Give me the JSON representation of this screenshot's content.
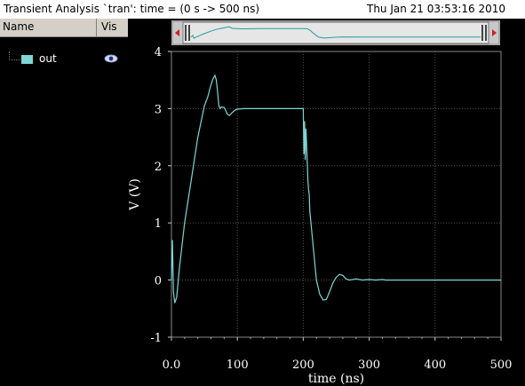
{
  "window": {
    "title": "Transient Analysis `tran': time = (0 s -> 500 ns)",
    "datetime": "Thu Jan 21 03:53:16 2010"
  },
  "signal_panel": {
    "col_name": "Name",
    "col_vis": "Vis",
    "signals": [
      {
        "name": "out",
        "color": "#7fd6d6",
        "visible_icon": "eye-icon"
      }
    ]
  },
  "chart_data": {
    "type": "line",
    "xlabel": "time (ns)",
    "ylabel": "V (V)",
    "xlim": [
      0,
      500
    ],
    "ylim": [
      -1,
      4
    ],
    "x_ticks": [
      "0.0",
      "100",
      "200",
      "300",
      "400",
      "500"
    ],
    "y_ticks": [
      "-1",
      "0",
      "1",
      "2",
      "3",
      "4"
    ],
    "grid": true,
    "series": [
      {
        "name": "out",
        "color": "#7fd6d6",
        "x": [
          0,
          1.5,
          3,
          5,
          8,
          12,
          20,
          30,
          40,
          50,
          55,
          60,
          63,
          66,
          68,
          70,
          72,
          74,
          76,
          80,
          85,
          88,
          92,
          96,
          100,
          110,
          120,
          140,
          160,
          180,
          195,
          200,
          201,
          202,
          203,
          204,
          205,
          206,
          207,
          208,
          209,
          210,
          215,
          220,
          225,
          230,
          235,
          240,
          245,
          250,
          255,
          260,
          265,
          270,
          280,
          290,
          300,
          310,
          320,
          325,
          330,
          350,
          400,
          450,
          500
        ],
        "y": [
          0,
          0.7,
          -0.2,
          -0.4,
          -0.3,
          0.2,
          1.0,
          1.75,
          2.5,
          3.05,
          3.2,
          3.42,
          3.52,
          3.58,
          3.5,
          3.3,
          3.05,
          3.0,
          3.03,
          3.02,
          2.9,
          2.88,
          2.93,
          2.97,
          2.99,
          3.0,
          3.0,
          3.0,
          3.0,
          3.0,
          3.0,
          3.0,
          2.2,
          2.78,
          2.1,
          2.65,
          2.4,
          2.05,
          1.75,
          1.6,
          1.5,
          1.2,
          0.6,
          0.0,
          -0.25,
          -0.35,
          -0.34,
          -0.2,
          -0.05,
          0.05,
          0.1,
          0.08,
          0.02,
          0.0,
          0.02,
          0.0,
          0.01,
          0.0,
          0.01,
          0.0,
          0.0,
          0.0,
          0.0,
          0.0,
          0.0
        ]
      }
    ],
    "overview_x": [
      0,
      3,
      5,
      20,
      40,
      50,
      60,
      66,
      72,
      80,
      90,
      120,
      200,
      205,
      210,
      220,
      230,
      240,
      260,
      300,
      500
    ],
    "overview_y": [
      0,
      0.6,
      -0.4,
      1.0,
      2.5,
      3.0,
      3.4,
      3.58,
      3.05,
      3.0,
      2.9,
      3.0,
      3.0,
      2.5,
      1.6,
      0.0,
      -0.35,
      -0.2,
      0.05,
      0.0,
      0.0
    ]
  }
}
